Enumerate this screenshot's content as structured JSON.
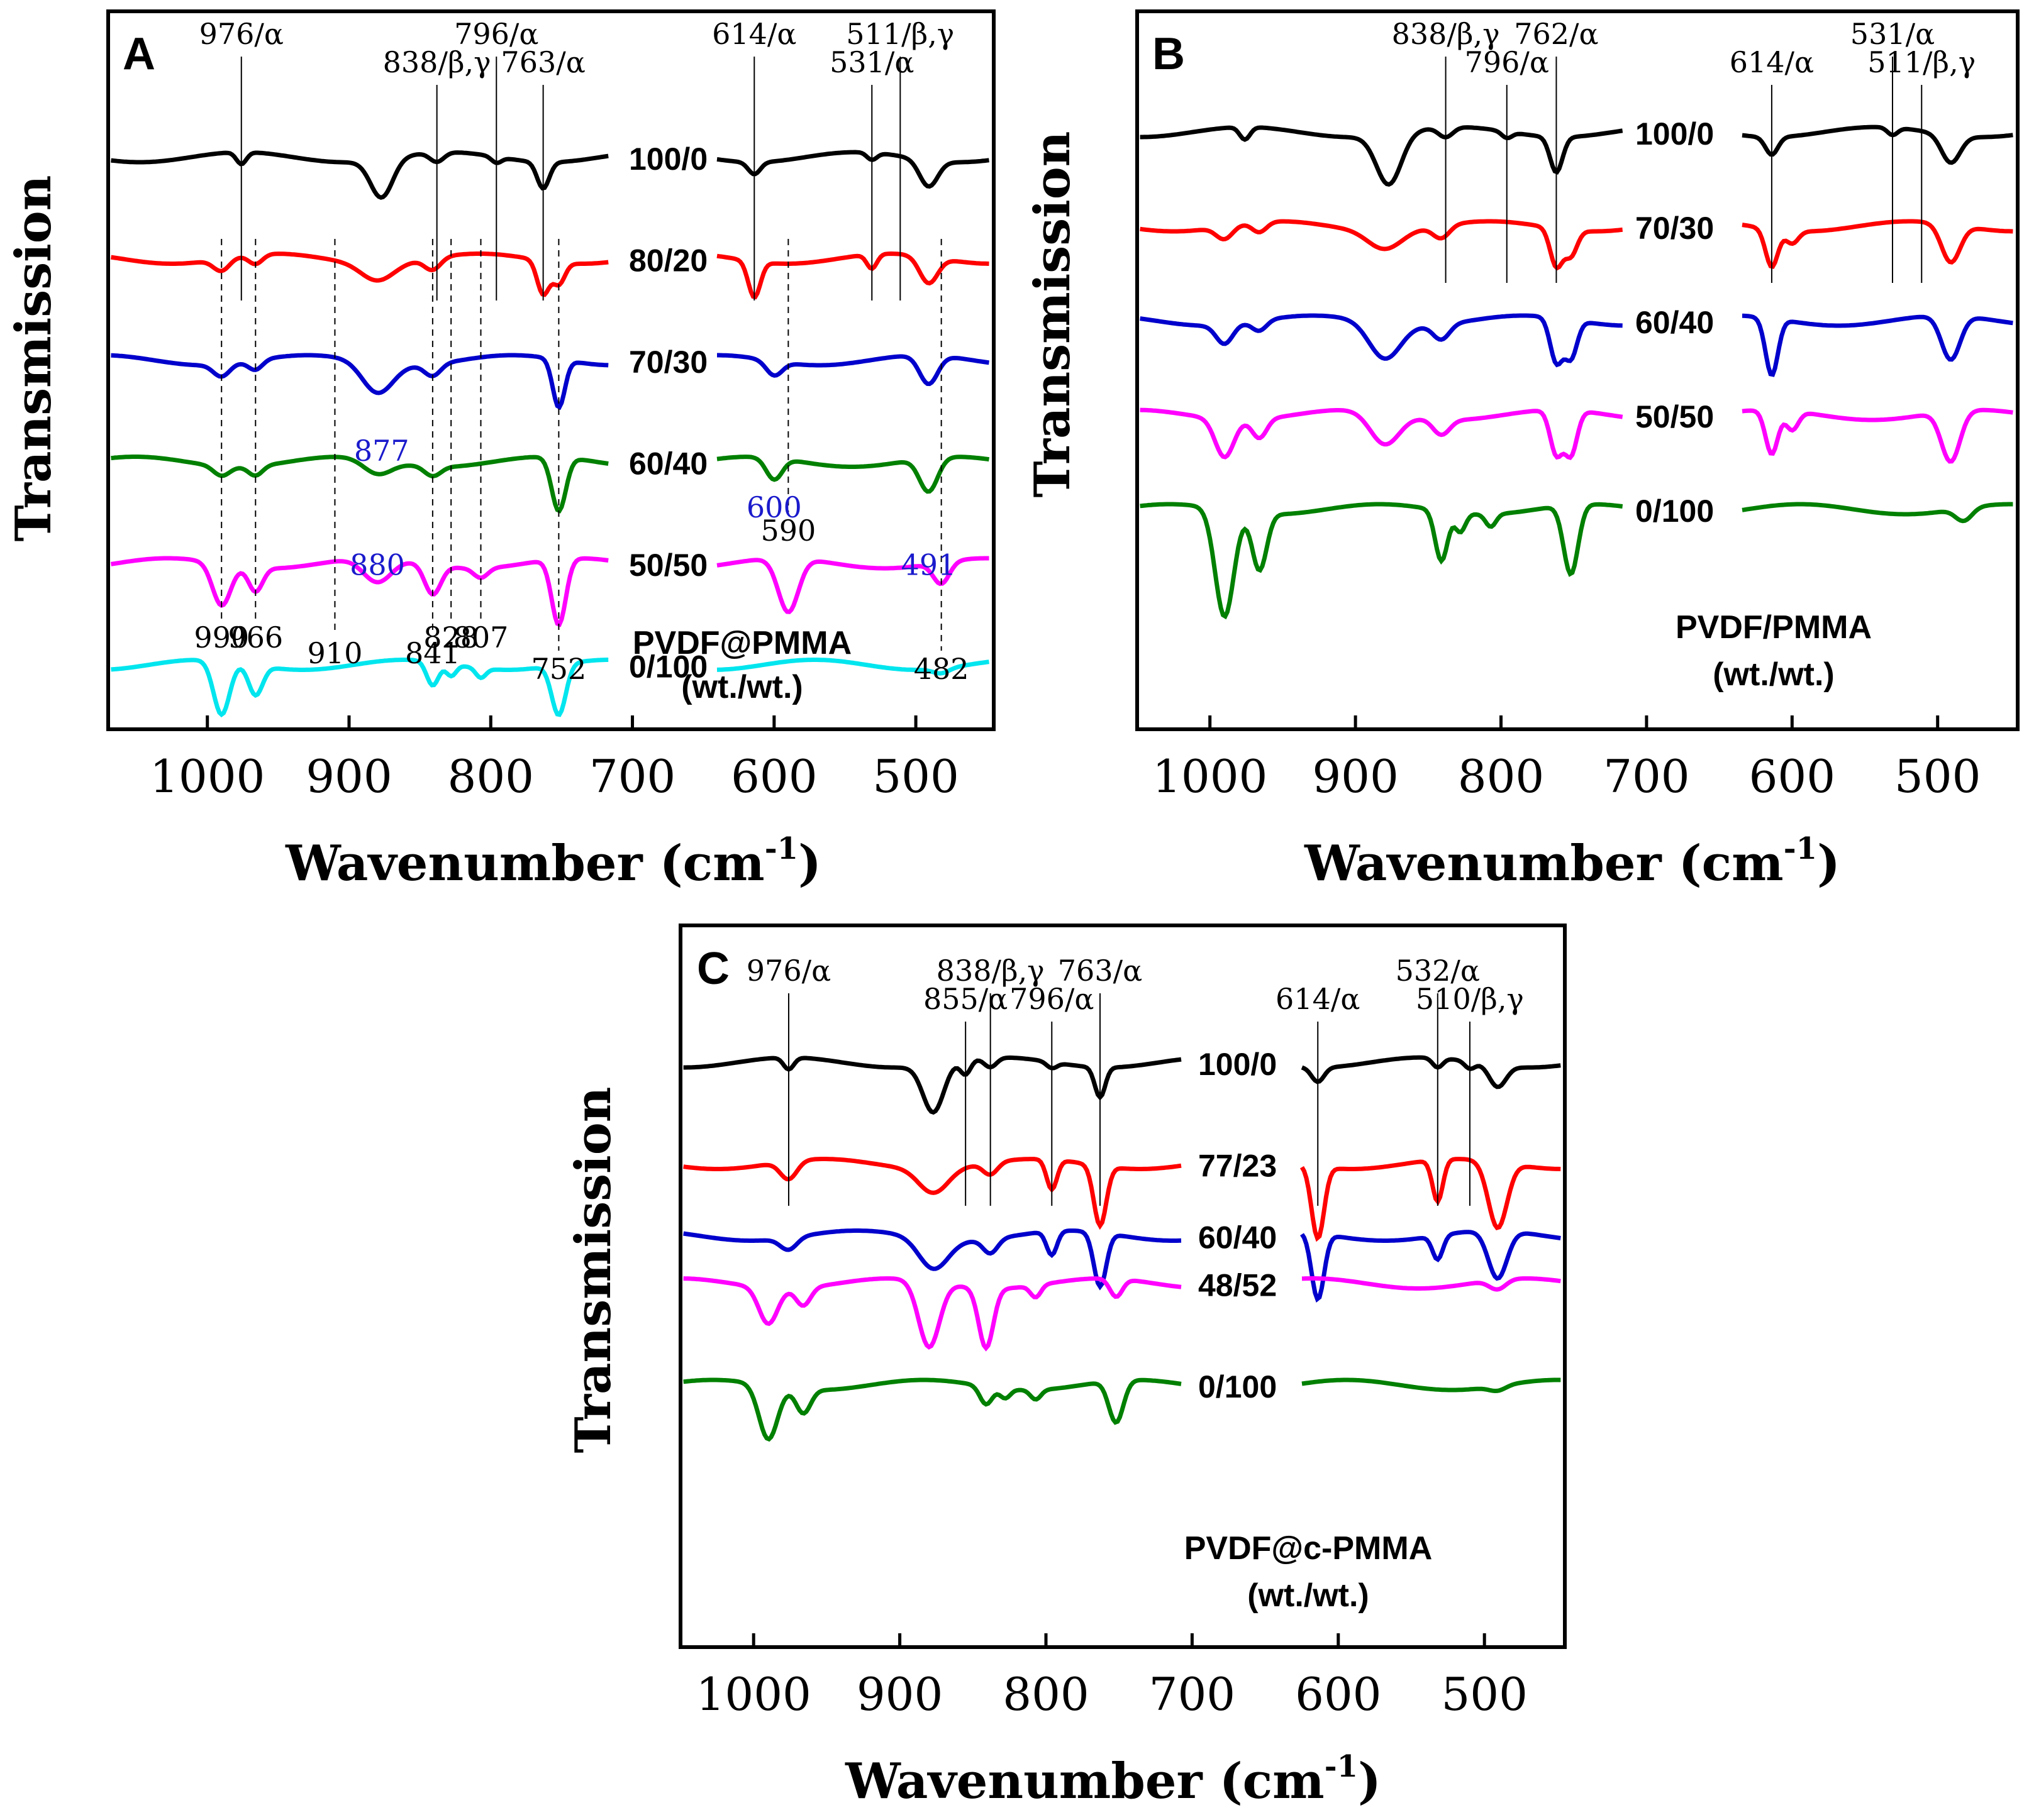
{
  "chart_data": [
    {
      "type": "line",
      "panel": "A",
      "xlabel": "Wavenumber (cm",
      "xlabel_sup": "-1",
      "xlabel_close": ")",
      "ylabel": "Transmission",
      "xlim": [
        1070,
        445
      ],
      "x_ticks": [
        1000,
        900,
        800,
        700,
        600,
        500
      ],
      "legend_lines": [
        "PVDF@PMMA",
        "(wt./wt.)"
      ],
      "series": [
        {
          "name": "100/0",
          "color": "#000000",
          "offset": 0.0,
          "peaks": [
            [
              976,
              0.1,
              5
            ],
            [
              877,
              0.32,
              11
            ],
            [
              838,
              0.08,
              7
            ],
            [
              796,
              0.05,
              5
            ],
            [
              763,
              0.22,
              6
            ],
            [
              614,
              0.1,
              6
            ],
            [
              531,
              0.06,
              5
            ],
            [
              491,
              0.22,
              9
            ]
          ]
        },
        {
          "name": "80/20",
          "color": "#ff0000",
          "offset": 0.85,
          "peaks": [
            [
              990,
              0.1,
              8
            ],
            [
              966,
              0.08,
              7
            ],
            [
              880,
              0.14,
              16
            ],
            [
              841,
              0.1,
              8
            ],
            [
              763,
              0.28,
              6
            ],
            [
              752,
              0.18,
              6
            ],
            [
              614,
              0.3,
              6
            ],
            [
              531,
              0.12,
              5
            ],
            [
              491,
              0.22,
              9
            ]
          ]
        },
        {
          "name": "70/30",
          "color": "#0000cc",
          "offset": 1.7,
          "peaks": [
            [
              990,
              0.1,
              8
            ],
            [
              966,
              0.08,
              7
            ],
            [
              880,
              0.25,
              15
            ],
            [
              841,
              0.1,
              8
            ],
            [
              752,
              0.4,
              6
            ],
            [
              600,
              0.12,
              8
            ],
            [
              491,
              0.24,
              9
            ]
          ]
        },
        {
          "name": "60/40",
          "color": "#008000",
          "offset": 2.55,
          "peaks": [
            [
              990,
              0.08,
              8
            ],
            [
              966,
              0.08,
              7
            ],
            [
              880,
              0.12,
              14
            ],
            [
              841,
              0.08,
              8
            ],
            [
              752,
              0.45,
              7
            ],
            [
              600,
              0.18,
              8
            ],
            [
              491,
              0.28,
              9
            ]
          ]
        },
        {
          "name": "50/50",
          "color": "#ff00ff",
          "offset": 3.4,
          "peaks": [
            [
              990,
              0.35,
              9
            ],
            [
              966,
              0.2,
              7
            ],
            [
              880,
              0.2,
              14
            ],
            [
              841,
              0.25,
              8
            ],
            [
              807,
              0.08,
              7
            ],
            [
              752,
              0.55,
              7
            ],
            [
              590,
              0.45,
              10
            ],
            [
              482,
              0.18,
              8
            ]
          ]
        },
        {
          "name": "0/100",
          "color": "#00e5ee",
          "offset": 4.25,
          "peaks": [
            [
              990,
              0.45,
              8
            ],
            [
              966,
              0.25,
              7
            ],
            [
              841,
              0.2,
              6
            ],
            [
              828,
              0.1,
              5
            ],
            [
              807,
              0.08,
              5
            ],
            [
              752,
              0.42,
              7
            ],
            [
              482,
              0.04,
              8
            ]
          ]
        }
      ],
      "annotations_top": [
        {
          "text": "976/α",
          "x": 976
        },
        {
          "text": "838/β,γ",
          "x": 838
        },
        {
          "text": "796/α",
          "x": 796
        },
        {
          "text": "763/α",
          "x": 763
        },
        {
          "text": "614/α",
          "x": 614
        },
        {
          "text": "531/α",
          "x": 531
        },
        {
          "text": "511/β,γ",
          "x": 511
        }
      ],
      "annotations_bottom": [
        "990",
        "966",
        "910",
        "841",
        "828",
        "807",
        "752",
        "482",
        "590"
      ],
      "annotations_blue": [
        "877",
        "880",
        "600",
        "491"
      ]
    },
    {
      "type": "line",
      "panel": "B",
      "xlabel": "Wavenumber (cm",
      "xlabel_sup": "-1",
      "xlabel_close": ")",
      "ylabel": "Transmission",
      "xlim": [
        1050,
        445
      ],
      "x_ticks": [
        1000,
        900,
        800,
        700,
        600,
        500
      ],
      "legend_lines": [
        "PVDF/PMMA",
        "(wt./wt.)"
      ],
      "series": [
        {
          "name": "100/0",
          "color": "#000000",
          "offset": 0.0,
          "peaks": [
            [
              976,
              0.1,
              5
            ],
            [
              877,
              0.4,
              12
            ],
            [
              838,
              0.08,
              7
            ],
            [
              796,
              0.05,
              5
            ],
            [
              762,
              0.28,
              6
            ],
            [
              614,
              0.14,
              6
            ],
            [
              531,
              0.06,
              5
            ],
            [
              491,
              0.22,
              9
            ]
          ]
        },
        {
          "name": "70/30",
          "color": "#ff0000",
          "offset": 0.75,
          "peaks": [
            [
              990,
              0.1,
              8
            ],
            [
              966,
              0.08,
              7
            ],
            [
              880,
              0.14,
              16
            ],
            [
              841,
              0.1,
              8
            ],
            [
              762,
              0.3,
              6
            ],
            [
              752,
              0.2,
              6
            ],
            [
              614,
              0.3,
              6
            ],
            [
              600,
              0.1,
              6
            ],
            [
              491,
              0.3,
              9
            ]
          ]
        },
        {
          "name": "60/40",
          "color": "#0000cc",
          "offset": 1.5,
          "peaks": [
            [
              990,
              0.15,
              8
            ],
            [
              966,
              0.08,
              7
            ],
            [
              880,
              0.28,
              15
            ],
            [
              841,
              0.12,
              8
            ],
            [
              762,
              0.35,
              6
            ],
            [
              752,
              0.3,
              6
            ],
            [
              614,
              0.45,
              6
            ],
            [
              491,
              0.35,
              9
            ]
          ]
        },
        {
          "name": "50/50",
          "color": "#ff00ff",
          "offset": 2.25,
          "peaks": [
            [
              990,
              0.3,
              9
            ],
            [
              966,
              0.15,
              7
            ],
            [
              880,
              0.25,
              14
            ],
            [
              841,
              0.12,
              8
            ],
            [
              762,
              0.35,
              6
            ],
            [
              752,
              0.35,
              6
            ],
            [
              614,
              0.35,
              6
            ],
            [
              600,
              0.15,
              6
            ],
            [
              491,
              0.4,
              9
            ]
          ]
        },
        {
          "name": "0/100",
          "color": "#008000",
          "offset": 3.0,
          "peaks": [
            [
              990,
              0.85,
              9
            ],
            [
              966,
              0.45,
              7
            ],
            [
              841,
              0.4,
              6
            ],
            [
              828,
              0.15,
              5
            ],
            [
              807,
              0.1,
              5
            ],
            [
              752,
              0.55,
              7
            ],
            [
              482,
              0.1,
              8
            ]
          ]
        }
      ],
      "annotations_top": [
        {
          "text": "838/β,γ",
          "x": 838
        },
        {
          "text": "796/α",
          "x": 796
        },
        {
          "text": "762/α",
          "x": 762
        },
        {
          "text": "614/α",
          "x": 614
        },
        {
          "text": "531/α",
          "x": 531
        },
        {
          "text": "511/β,γ",
          "x": 511
        }
      ]
    },
    {
      "type": "line",
      "panel": "C",
      "xlabel": "Wavenumber (cm",
      "xlabel_sup": "-1",
      "xlabel_close": ")",
      "ylabel": "Transmission",
      "xlim": [
        1050,
        445
      ],
      "x_ticks": [
        1000,
        900,
        800,
        700,
        600,
        500
      ],
      "legend_lines": [
        "PVDF@c-PMMA",
        "(wt./wt.)"
      ],
      "series": [
        {
          "name": "100/0",
          "color": "#000000",
          "offset": 0.0,
          "peaks": [
            [
              976,
              0.1,
              5
            ],
            [
              877,
              0.4,
              10
            ],
            [
              855,
              0.12,
              5
            ],
            [
              838,
              0.08,
              6
            ],
            [
              796,
              0.05,
              5
            ],
            [
              763,
              0.25,
              5
            ],
            [
              614,
              0.12,
              6
            ],
            [
              532,
              0.08,
              5
            ],
            [
              510,
              0.06,
              5
            ],
            [
              491,
              0.18,
              8
            ]
          ]
        },
        {
          "name": "77/23",
          "color": "#ff0000",
          "offset": 0.85,
          "peaks": [
            [
              976,
              0.15,
              8
            ],
            [
              877,
              0.2,
              14
            ],
            [
              838,
              0.1,
              7
            ],
            [
              796,
              0.25,
              5
            ],
            [
              763,
              0.5,
              6
            ],
            [
              614,
              0.6,
              6
            ],
            [
              532,
              0.35,
              5
            ],
            [
              491,
              0.55,
              9
            ]
          ]
        },
        {
          "name": "60/40",
          "color": "#0000cc",
          "offset": 1.45,
          "peaks": [
            [
              976,
              0.1,
              8
            ],
            [
              877,
              0.25,
              14
            ],
            [
              838,
              0.12,
              7
            ],
            [
              796,
              0.2,
              5
            ],
            [
              763,
              0.45,
              6
            ],
            [
              614,
              0.55,
              6
            ],
            [
              532,
              0.2,
              5
            ],
            [
              491,
              0.4,
              9
            ]
          ]
        },
        {
          "name": "48/52",
          "color": "#ff00ff",
          "offset": 1.85,
          "peaks": [
            [
              990,
              0.3,
              9
            ],
            [
              966,
              0.15,
              7
            ],
            [
              880,
              0.55,
              10
            ],
            [
              841,
              0.5,
              7
            ],
            [
              807,
              0.1,
              5
            ],
            [
              752,
              0.15,
              6
            ],
            [
              491,
              0.08,
              8
            ]
          ]
        },
        {
          "name": "0/100",
          "color": "#008000",
          "offset": 2.7,
          "peaks": [
            [
              990,
              0.45,
              9
            ],
            [
              966,
              0.2,
              7
            ],
            [
              841,
              0.15,
              6
            ],
            [
              828,
              0.08,
              5
            ],
            [
              807,
              0.08,
              5
            ],
            [
              752,
              0.35,
              7
            ],
            [
              491,
              0.04,
              8
            ]
          ]
        }
      ],
      "annotations_top": [
        {
          "text": "976/α",
          "x": 976
        },
        {
          "text": "855/α",
          "x": 855
        },
        {
          "text": "838/β,γ",
          "x": 838
        },
        {
          "text": "796/α",
          "x": 796
        },
        {
          "text": "763/α",
          "x": 763
        },
        {
          "text": "614/α",
          "x": 614
        },
        {
          "text": "532/α",
          "x": 532
        },
        {
          "text": "510/β,γ",
          "x": 510
        }
      ]
    }
  ]
}
